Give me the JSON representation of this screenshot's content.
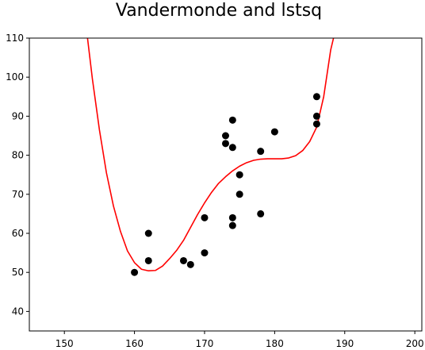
{
  "chart_data": {
    "type": "scatter",
    "title": "Vandermonde and lstsq",
    "xlabel": "",
    "ylabel": "",
    "xlim": [
      145,
      201
    ],
    "ylim": [
      35,
      110
    ],
    "xticks": [
      "150",
      "160",
      "170",
      "180",
      "190",
      "200"
    ],
    "yticks": [
      "40",
      "50",
      "60",
      "70",
      "80",
      "90",
      "100",
      "110"
    ],
    "grid": false,
    "series": [
      {
        "kind": "scatter",
        "color": "#000000",
        "points": [
          [
            160,
            50
          ],
          [
            162,
            60
          ],
          [
            162,
            53
          ],
          [
            167,
            53
          ],
          [
            168,
            52
          ],
          [
            170,
            64
          ],
          [
            170,
            55
          ],
          [
            173,
            85
          ],
          [
            173,
            83
          ],
          [
            174,
            89
          ],
          [
            174,
            82
          ],
          [
            174,
            64
          ],
          [
            174,
            62
          ],
          [
            175,
            75
          ],
          [
            175,
            70
          ],
          [
            178,
            81
          ],
          [
            178,
            65
          ],
          [
            180,
            86
          ],
          [
            186,
            95
          ],
          [
            186,
            90
          ],
          [
            186,
            88
          ]
        ]
      },
      {
        "kind": "line",
        "color": "#ff0000",
        "points": [
          [
            153.3,
            110
          ],
          [
            154,
            99.5
          ],
          [
            155,
            86.5
          ],
          [
            156,
            75.5
          ],
          [
            157,
            67
          ],
          [
            158,
            60.5
          ],
          [
            159,
            55.5
          ],
          [
            160,
            52.5
          ],
          [
            161,
            50.8
          ],
          [
            162,
            50.4
          ],
          [
            163,
            50.5
          ],
          [
            164,
            51.6
          ],
          [
            165,
            53.5
          ],
          [
            166,
            55.6
          ],
          [
            167,
            58.2
          ],
          [
            168,
            61.5
          ],
          [
            169,
            64.8
          ],
          [
            170,
            67.8
          ],
          [
            171,
            70.5
          ],
          [
            172,
            72.8
          ],
          [
            173,
            74.5
          ],
          [
            174,
            76
          ],
          [
            175,
            77.2
          ],
          [
            176,
            78.1
          ],
          [
            177,
            78.7
          ],
          [
            178,
            79
          ],
          [
            179,
            79.1
          ],
          [
            180,
            79.1
          ],
          [
            181,
            79.1
          ],
          [
            182,
            79.3
          ],
          [
            183,
            79.9
          ],
          [
            184,
            81.2
          ],
          [
            185,
            83.5
          ],
          [
            186,
            87.2
          ],
          [
            187,
            95
          ],
          [
            188,
            107
          ],
          [
            188.4,
            110
          ]
        ]
      }
    ]
  }
}
